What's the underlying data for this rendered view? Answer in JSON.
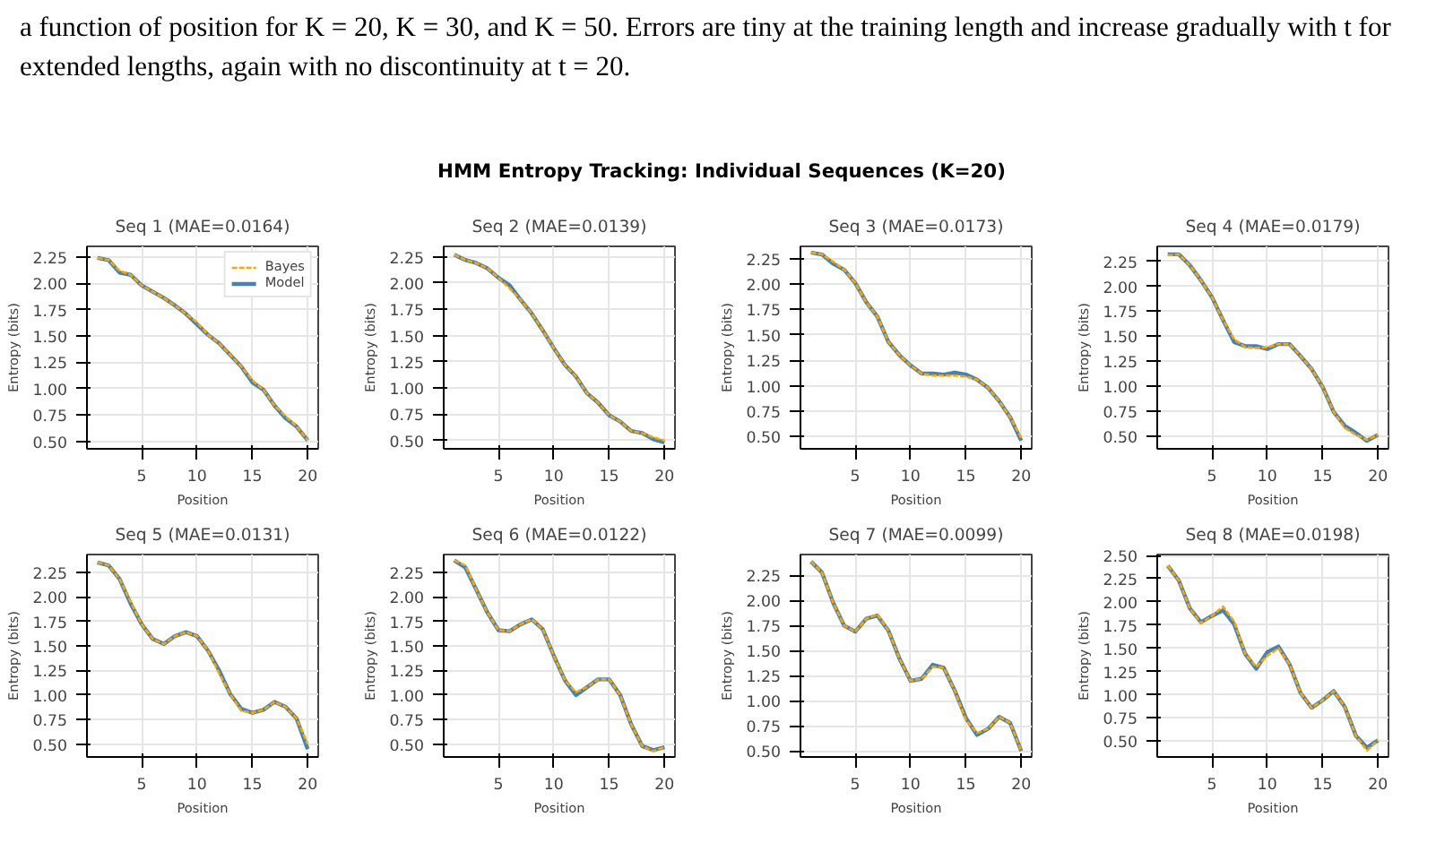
{
  "chart_data": [
    {
      "type": "line",
      "title": "Seq 1 (MAE=0.0164)",
      "xlabel": "Position",
      "ylabel": "Entropy (bits)",
      "annotations": [
        "a function of position for K = 20, K = 30, and K = 50. Errors are tiny at the training length and increase gradually with t for extended lengths, again with no discontinuity at t = 20.",
        "HMM Entropy Tracking: Individual Sequences (K=20)"
      ],
      "x": [
        1,
        2,
        3,
        4,
        5,
        6,
        7,
        8,
        9,
        10,
        11,
        12,
        13,
        14,
        15,
        16,
        17,
        18,
        19,
        20
      ],
      "xlim": [
        0.05,
        20.95
      ],
      "xticks": [
        5,
        10,
        15,
        20
      ],
      "ylim": [
        0.43,
        2.35
      ],
      "yticks": [
        {
          "value": 0.5,
          "label": "0.50"
        },
        {
          "value": 0.75,
          "label": "0.75"
        },
        {
          "value": 1.0,
          "label": "1.00"
        },
        {
          "value": 1.25,
          "label": "1.25"
        },
        {
          "value": 1.5,
          "label": "1.50"
        },
        {
          "value": 1.75,
          "label": "1.75"
        },
        {
          "value": 2.0,
          "label": "2.00"
        },
        {
          "value": 2.25,
          "label": "2.25"
        }
      ],
      "grid": true,
      "legend": "top right",
      "series": [
        {
          "name": "Bayes",
          "color": "#ffa500",
          "line_style": "dashed",
          "values": [
            2.24,
            2.22,
            2.12,
            2.08,
            1.98,
            1.92,
            1.86,
            1.79,
            1.71,
            1.63,
            1.51,
            1.43,
            1.32,
            1.21,
            1.08,
            0.99,
            0.84,
            0.74,
            0.64,
            0.51
          ]
        },
        {
          "name": "Model",
          "color": "#4682b4",
          "line_style": "solid",
          "values": [
            2.24,
            2.22,
            2.1,
            2.08,
            1.98,
            1.92,
            1.86,
            1.79,
            1.71,
            1.61,
            1.51,
            1.43,
            1.32,
            1.21,
            1.06,
            0.99,
            0.84,
            0.72,
            0.64,
            0.51
          ]
        }
      ]
    },
    {
      "type": "line",
      "title": "Seq 2 (MAE=0.0139)",
      "xlabel": "Position",
      "ylabel": "Entropy (bits)",
      "x": [
        1,
        2,
        3,
        4,
        5,
        6,
        7,
        8,
        9,
        10,
        11,
        12,
        13,
        14,
        15,
        16,
        17,
        18,
        19,
        20
      ],
      "xlim": [
        0.05,
        20.95
      ],
      "xticks": [
        5,
        10,
        15,
        20
      ],
      "ylim": [
        0.42,
        2.35
      ],
      "yticks": [
        {
          "value": 0.5,
          "label": "0.50"
        },
        {
          "value": 0.75,
          "label": "0.75"
        },
        {
          "value": 1.0,
          "label": "1.00"
        },
        {
          "value": 1.25,
          "label": "1.25"
        },
        {
          "value": 1.5,
          "label": "1.50"
        },
        {
          "value": 1.75,
          "label": "1.75"
        },
        {
          "value": 2.0,
          "label": "2.00"
        },
        {
          "value": 2.25,
          "label": "2.25"
        }
      ],
      "grid": true,
      "series": [
        {
          "color": "#ffa500",
          "line_style": "dashed",
          "values": [
            2.27,
            2.22,
            2.19,
            2.14,
            2.05,
            1.95,
            1.84,
            1.71,
            1.55,
            1.38,
            1.22,
            1.11,
            0.95,
            0.86,
            0.74,
            0.68,
            0.59,
            0.57,
            0.53,
            0.5
          ]
        },
        {
          "color": "#4682b4",
          "line_style": "solid",
          "values": [
            2.27,
            2.22,
            2.19,
            2.14,
            2.05,
            1.98,
            1.84,
            1.71,
            1.55,
            1.38,
            1.22,
            1.11,
            0.95,
            0.86,
            0.74,
            0.68,
            0.59,
            0.57,
            0.51,
            0.48
          ]
        }
      ]
    },
    {
      "type": "line",
      "title": "Seq 3 (MAE=0.0173)",
      "xlabel": "Position",
      "ylabel": "Entropy (bits)",
      "x": [
        1,
        2,
        3,
        4,
        5,
        6,
        7,
        8,
        9,
        10,
        11,
        12,
        13,
        14,
        15,
        16,
        17,
        18,
        19,
        20
      ],
      "xlim": [
        0.05,
        20.95
      ],
      "xticks": [
        5,
        10,
        15,
        20
      ],
      "ylim": [
        0.38,
        2.37
      ],
      "yticks": [
        {
          "value": 0.5,
          "label": "0.50"
        },
        {
          "value": 0.75,
          "label": "0.75"
        },
        {
          "value": 1.0,
          "label": "1.00"
        },
        {
          "value": 1.25,
          "label": "1.25"
        },
        {
          "value": 1.5,
          "label": "1.50"
        },
        {
          "value": 1.75,
          "label": "1.75"
        },
        {
          "value": 2.0,
          "label": "2.00"
        },
        {
          "value": 2.25,
          "label": "2.25"
        }
      ],
      "grid": true,
      "series": [
        {
          "color": "#ffa500",
          "line_style": "dashed",
          "values": [
            2.31,
            2.29,
            2.22,
            2.14,
            2.01,
            1.82,
            1.68,
            1.43,
            1.3,
            1.2,
            1.12,
            1.1,
            1.1,
            1.1,
            1.09,
            1.06,
            0.98,
            0.85,
            0.69,
            0.49
          ]
        },
        {
          "color": "#4682b4",
          "line_style": "solid",
          "values": [
            2.31,
            2.29,
            2.2,
            2.14,
            2.01,
            1.82,
            1.68,
            1.43,
            1.3,
            1.2,
            1.12,
            1.12,
            1.11,
            1.13,
            1.11,
            1.06,
            0.98,
            0.85,
            0.69,
            0.46
          ]
        }
      ]
    },
    {
      "type": "line",
      "title": "Seq 4 (MAE=0.0179)",
      "xlabel": "Position",
      "ylabel": "Entropy (bits)",
      "x": [
        1,
        2,
        3,
        4,
        5,
        6,
        7,
        8,
        9,
        10,
        11,
        12,
        13,
        14,
        15,
        16,
        17,
        18,
        19,
        20
      ],
      "xlim": [
        0.05,
        20.95
      ],
      "xticks": [
        5,
        10,
        15,
        20
      ],
      "ylim": [
        0.37,
        2.4
      ],
      "yticks": [
        {
          "value": 0.5,
          "label": "0.50"
        },
        {
          "value": 0.75,
          "label": "0.75"
        },
        {
          "value": 1.0,
          "label": "1.00"
        },
        {
          "value": 1.25,
          "label": "1.25"
        },
        {
          "value": 1.5,
          "label": "1.50"
        },
        {
          "value": 1.75,
          "label": "1.75"
        },
        {
          "value": 2.0,
          "label": "2.00"
        },
        {
          "value": 2.25,
          "label": "2.25"
        }
      ],
      "grid": true,
      "series": [
        {
          "color": "#ffa500",
          "line_style": "dashed",
          "values": [
            2.31,
            2.32,
            2.21,
            2.06,
            1.89,
            1.66,
            1.47,
            1.39,
            1.38,
            1.39,
            1.42,
            1.42,
            1.3,
            1.17,
            0.99,
            0.74,
            0.58,
            0.51,
            0.46,
            0.51
          ]
        },
        {
          "color": "#4682b4",
          "line_style": "solid",
          "values": [
            2.32,
            2.32,
            2.21,
            2.06,
            1.89,
            1.66,
            1.44,
            1.4,
            1.4,
            1.37,
            1.42,
            1.42,
            1.3,
            1.17,
            0.99,
            0.74,
            0.6,
            0.53,
            0.45,
            0.51
          ]
        }
      ]
    },
    {
      "type": "line",
      "title": "Seq 5 (MAE=0.0131)",
      "xlabel": "Position",
      "ylabel": "Entropy (bits)",
      "x": [
        1,
        2,
        3,
        4,
        5,
        6,
        7,
        8,
        9,
        10,
        11,
        12,
        13,
        14,
        15,
        16,
        17,
        18,
        19,
        20
      ],
      "xlim": [
        0.05,
        20.95
      ],
      "xticks": [
        5,
        10,
        15,
        20
      ],
      "ylim": [
        0.37,
        2.43
      ],
      "yticks": [
        {
          "value": 0.5,
          "label": "0.50"
        },
        {
          "value": 0.75,
          "label": "0.75"
        },
        {
          "value": 1.0,
          "label": "1.00"
        },
        {
          "value": 1.25,
          "label": "1.25"
        },
        {
          "value": 1.5,
          "label": "1.50"
        },
        {
          "value": 1.75,
          "label": "1.75"
        },
        {
          "value": 2.0,
          "label": "2.00"
        },
        {
          "value": 2.25,
          "label": "2.25"
        }
      ],
      "grid": true,
      "series": [
        {
          "color": "#ffa500",
          "line_style": "dashed",
          "values": [
            2.35,
            2.32,
            2.18,
            1.95,
            1.72,
            1.57,
            1.52,
            1.6,
            1.64,
            1.6,
            1.45,
            1.22,
            1.01,
            0.84,
            0.82,
            0.85,
            0.93,
            0.88,
            0.76,
            0.5
          ]
        },
        {
          "color": "#4682b4",
          "line_style": "solid",
          "values": [
            2.35,
            2.32,
            2.18,
            1.93,
            1.72,
            1.57,
            1.52,
            1.6,
            1.64,
            1.6,
            1.45,
            1.25,
            1.01,
            0.86,
            0.82,
            0.85,
            0.93,
            0.88,
            0.76,
            0.45
          ]
        }
      ]
    },
    {
      "type": "line",
      "title": "Seq 6 (MAE=0.0122)",
      "xlabel": "Position",
      "ylabel": "Entropy (bits)",
      "x": [
        1,
        2,
        3,
        4,
        5,
        6,
        7,
        8,
        9,
        10,
        11,
        12,
        13,
        14,
        15,
        16,
        17,
        18,
        19,
        20
      ],
      "xlim": [
        0.05,
        20.95
      ],
      "xticks": [
        5,
        10,
        15,
        20
      ],
      "ylim": [
        0.37,
        2.43
      ],
      "yticks": [
        {
          "value": 0.5,
          "label": "0.50"
        },
        {
          "value": 0.75,
          "label": "0.75"
        },
        {
          "value": 1.0,
          "label": "1.00"
        },
        {
          "value": 1.25,
          "label": "1.25"
        },
        {
          "value": 1.5,
          "label": "1.50"
        },
        {
          "value": 1.75,
          "label": "1.75"
        },
        {
          "value": 2.0,
          "label": "2.00"
        },
        {
          "value": 2.25,
          "label": "2.25"
        }
      ],
      "grid": true,
      "series": [
        {
          "color": "#ffa500",
          "line_style": "dashed",
          "values": [
            2.37,
            2.32,
            2.07,
            1.84,
            1.66,
            1.65,
            1.72,
            1.77,
            1.67,
            1.4,
            1.15,
            1.03,
            1.08,
            1.16,
            1.16,
            1.0,
            0.7,
            0.48,
            0.43,
            0.47
          ]
        },
        {
          "color": "#4682b4",
          "line_style": "solid",
          "values": [
            2.37,
            2.3,
            2.07,
            1.84,
            1.66,
            1.65,
            1.72,
            1.77,
            1.67,
            1.4,
            1.15,
            1.0,
            1.08,
            1.16,
            1.16,
            1.0,
            0.7,
            0.48,
            0.44,
            0.47
          ]
        }
      ]
    },
    {
      "type": "line",
      "title": "Seq 7 (MAE=0.0099)",
      "xlabel": "Position",
      "ylabel": "Entropy (bits)",
      "x": [
        1,
        2,
        3,
        4,
        5,
        6,
        7,
        8,
        9,
        10,
        11,
        12,
        13,
        14,
        15,
        16,
        17,
        18,
        19,
        20
      ],
      "xlim": [
        0.05,
        20.95
      ],
      "xticks": [
        5,
        10,
        15,
        20
      ],
      "ylim": [
        0.44,
        2.46
      ],
      "yticks": [
        {
          "value": 0.5,
          "label": "0.50"
        },
        {
          "value": 0.75,
          "label": "0.75"
        },
        {
          "value": 1.0,
          "label": "1.00"
        },
        {
          "value": 1.25,
          "label": "1.25"
        },
        {
          "value": 1.5,
          "label": "1.50"
        },
        {
          "value": 1.75,
          "label": "1.75"
        },
        {
          "value": 2.0,
          "label": "2.00"
        },
        {
          "value": 2.25,
          "label": "2.25"
        }
      ],
      "grid": true,
      "series": [
        {
          "color": "#ffa500",
          "line_style": "dashed",
          "values": [
            2.39,
            2.28,
            1.98,
            1.75,
            1.69,
            1.82,
            1.86,
            1.7,
            1.42,
            1.2,
            1.22,
            1.34,
            1.33,
            1.1,
            0.81,
            0.68,
            0.72,
            0.84,
            0.78,
            0.5
          ]
        },
        {
          "color": "#4682b4",
          "line_style": "solid",
          "values": [
            2.39,
            2.28,
            1.98,
            1.75,
            1.69,
            1.82,
            1.85,
            1.7,
            1.42,
            1.2,
            1.22,
            1.36,
            1.33,
            1.1,
            0.83,
            0.66,
            0.72,
            0.84,
            0.78,
            0.5
          ]
        }
      ]
    },
    {
      "type": "line",
      "title": "Seq 8 (MAE=0.0198)",
      "xlabel": "Position",
      "ylabel": "Entropy (bits)",
      "x": [
        1,
        2,
        3,
        4,
        5,
        6,
        7,
        8,
        9,
        10,
        11,
        12,
        13,
        14,
        15,
        16,
        17,
        18,
        19,
        20
      ],
      "xlim": [
        0.05,
        20.95
      ],
      "xticks": [
        5,
        10,
        15,
        20
      ],
      "ylim": [
        0.33,
        2.51
      ],
      "yticks": [
        {
          "value": 0.5,
          "label": "0.50"
        },
        {
          "value": 0.75,
          "label": "0.75"
        },
        {
          "value": 1.0,
          "label": "1.00"
        },
        {
          "value": 1.25,
          "label": "1.25"
        },
        {
          "value": 1.5,
          "label": "1.50"
        },
        {
          "value": 1.75,
          "label": "1.75"
        },
        {
          "value": 2.0,
          "label": "2.00"
        },
        {
          "value": 2.25,
          "label": "2.25"
        },
        {
          "value": 2.5,
          "label": "2.50"
        }
      ],
      "grid": true,
      "series": [
        {
          "color": "#ffa500",
          "line_style": "dashed",
          "values": [
            2.39,
            2.23,
            1.93,
            1.77,
            1.85,
            1.95,
            1.79,
            1.44,
            1.3,
            1.42,
            1.5,
            1.33,
            1.02,
            0.86,
            0.94,
            1.04,
            0.87,
            0.56,
            0.4,
            0.51
          ]
        },
        {
          "color": "#4682b4",
          "line_style": "solid",
          "values": [
            2.39,
            2.23,
            1.93,
            1.78,
            1.85,
            1.91,
            1.76,
            1.44,
            1.28,
            1.46,
            1.52,
            1.33,
            1.02,
            0.86,
            0.94,
            1.04,
            0.87,
            0.56,
            0.43,
            0.51
          ]
        }
      ]
    }
  ]
}
